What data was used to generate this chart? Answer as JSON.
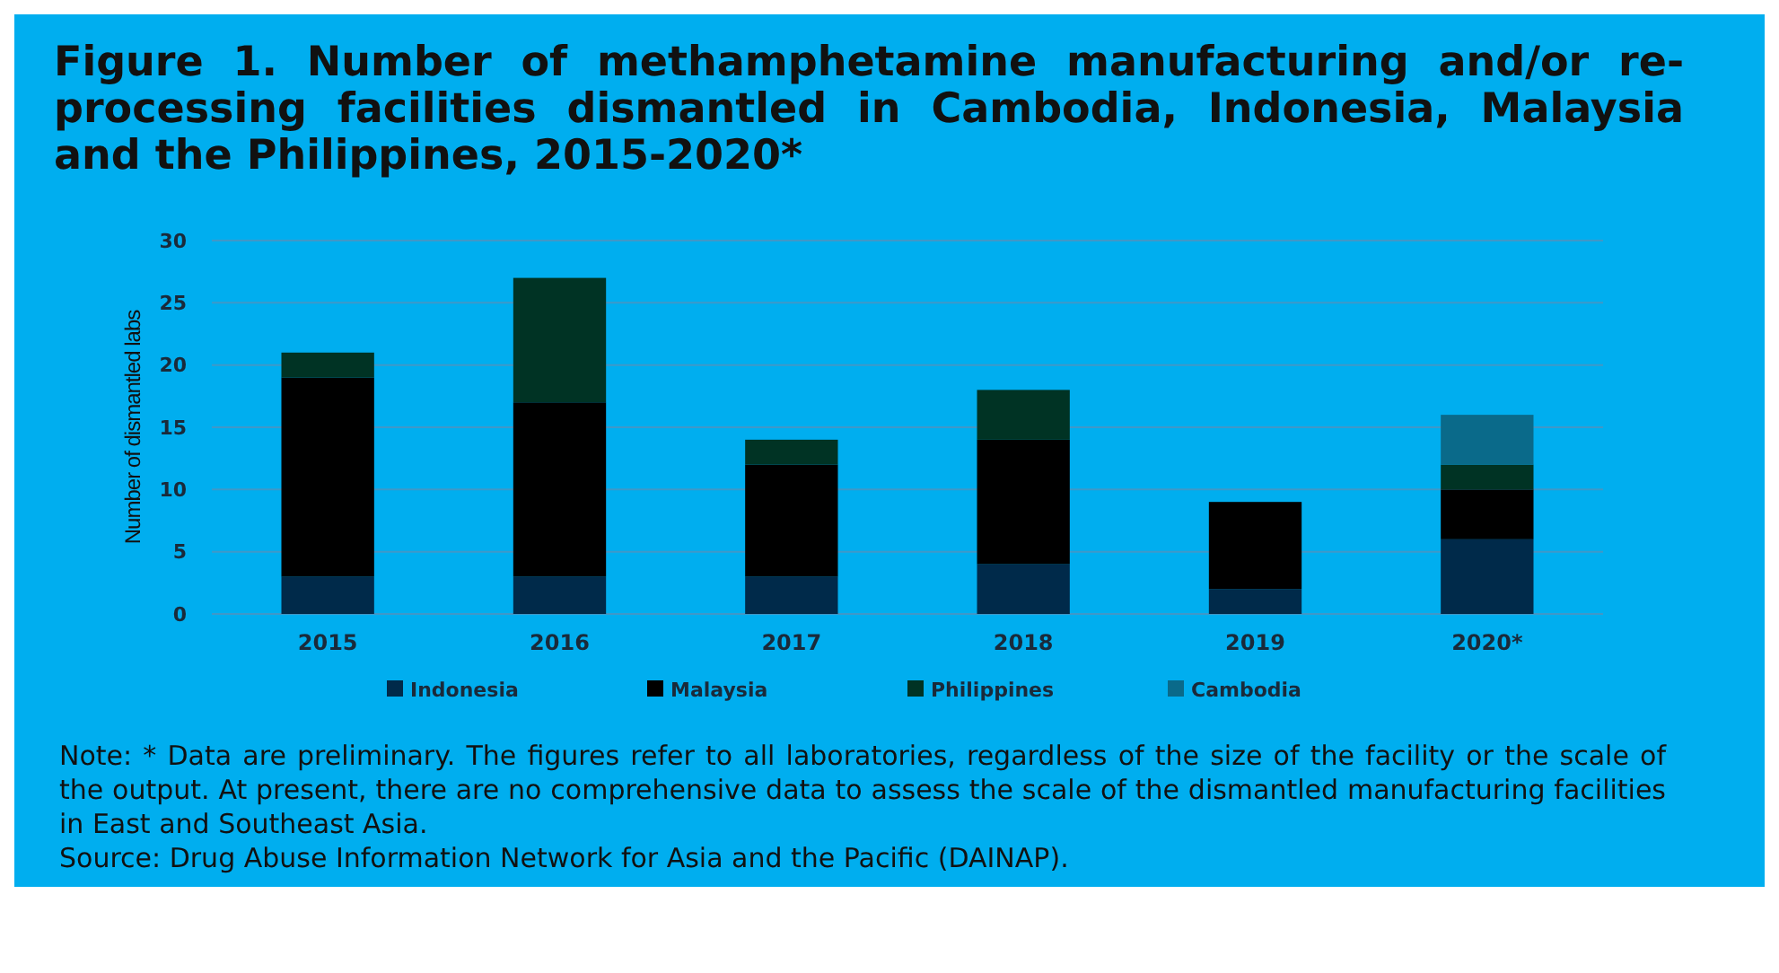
{
  "chart_data": {
    "type": "bar",
    "title": "Figure 1. Number of methamphetamine manufacturing and/or re-processing facilities dismantled in Cambodia, Indonesia, Malaysia and the Philippines, 2015-2020*",
    "ylabel": "Number of dismantled labs",
    "categories": [
      "2015",
      "2016",
      "2017",
      "2018",
      "2019",
      "2020*"
    ],
    "series": [
      {
        "name": "Indonesia",
        "color": "#002a4a",
        "values": [
          3,
          3,
          3,
          4,
          2,
          6
        ]
      },
      {
        "name": "Malaysia",
        "color": "#000000",
        "values": [
          16,
          14,
          9,
          10,
          7,
          4
        ]
      },
      {
        "name": "Philippines",
        "color": "#003324",
        "values": [
          2,
          10,
          2,
          4,
          0,
          2
        ]
      },
      {
        "name": "Cambodia",
        "color": "#0a6a8a",
        "values": [
          0,
          0,
          0,
          0,
          0,
          4
        ]
      }
    ],
    "stacked": true,
    "ylim": [
      0,
      30
    ],
    "yticks": [
      0,
      5,
      10,
      15,
      20,
      25,
      30
    ],
    "grid": "y",
    "legend": "bottom",
    "annotations": [
      "Note: * Data are preliminary. The figures refer to all laboratories, regardless of the size of the facility or the scale of the output. At present, there are no comprehensive data to assess the scale of the dismantled manufacturing facilities in East and Southeast Asia.",
      "Source: Drug Abuse Information Network for Asia and the Pacific (DAINAP)."
    ]
  }
}
